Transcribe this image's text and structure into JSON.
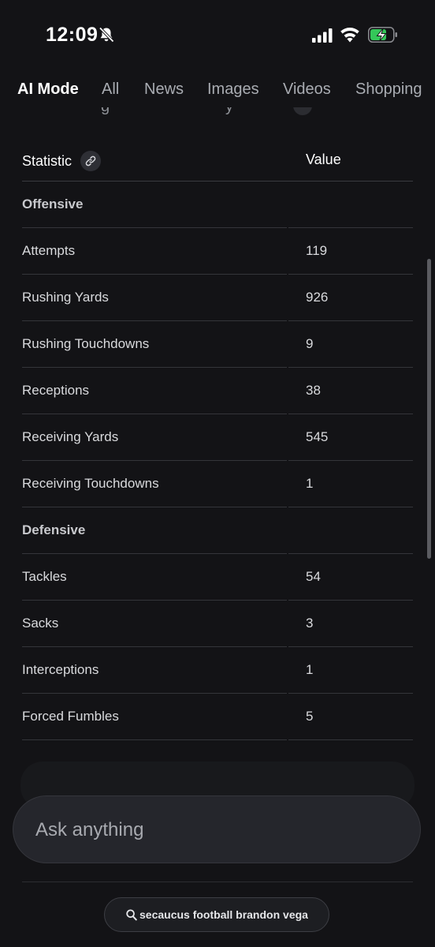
{
  "status_bar": {
    "time": "12:09",
    "icons": [
      "bell-slash-icon",
      "cellular-signal-icon",
      "wifi-icon",
      "battery-charging-icon"
    ],
    "battery_color": "#34c759"
  },
  "tabs": [
    {
      "label": "AI Mode",
      "active": true
    },
    {
      "label": "All",
      "active": false
    },
    {
      "label": "News",
      "active": false
    },
    {
      "label": "Images",
      "active": false
    },
    {
      "label": "Videos",
      "active": false
    },
    {
      "label": "Shopping",
      "active": false
    }
  ],
  "table": {
    "headers": {
      "statistic": "Statistic",
      "value": "Value"
    },
    "rows": [
      {
        "label": "Offensive",
        "value": "",
        "section": true
      },
      {
        "label": "Attempts",
        "value": "119"
      },
      {
        "label": "Rushing Yards",
        "value": "926"
      },
      {
        "label": "Rushing Touchdowns",
        "value": "9"
      },
      {
        "label": "Receptions",
        "value": "38"
      },
      {
        "label": "Receiving Yards",
        "value": "545"
      },
      {
        "label": "Receiving Touchdowns",
        "value": "1"
      },
      {
        "label": "Defensive",
        "value": "",
        "section": true
      },
      {
        "label": "Tackles",
        "value": "54"
      },
      {
        "label": "Sacks",
        "value": "3"
      },
      {
        "label": "Interceptions",
        "value": "1"
      },
      {
        "label": "Forced Fumbles",
        "value": "5"
      }
    ]
  },
  "search": {
    "placeholder": "Ask anything"
  },
  "query_pill": {
    "text": "secaucus football brandon vega",
    "icon": "search-icon"
  }
}
